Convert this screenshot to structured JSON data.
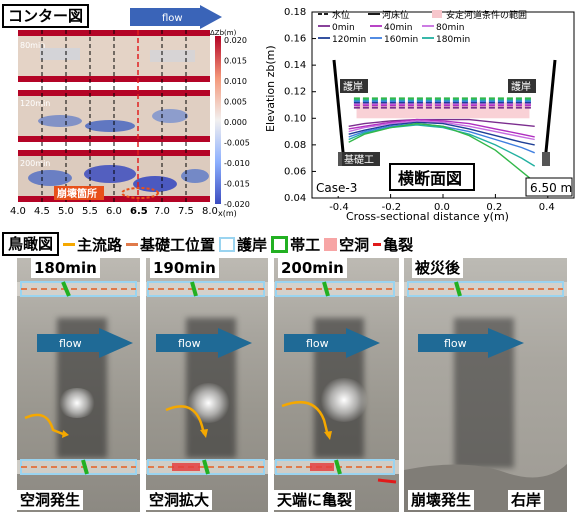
{
  "contour": {
    "title": "コンター図",
    "flow_label": "flow",
    "panels": [
      {
        "label": "80min"
      },
      {
        "label": "120min"
      },
      {
        "label": "200min"
      }
    ],
    "collapse_label": "崩壊箇所",
    "x_ticks": [
      "4.0",
      "4.5",
      "5.0",
      "5.5",
      "6.0",
      "6.5",
      "7.0",
      "7.5",
      "8.0"
    ],
    "x_unit": "x(m)",
    "colorbar_title": "ΔZb(m)",
    "colorbar_ticks": [
      "0.020",
      "0.015",
      "0.010",
      "0.005",
      "0.000",
      "-0.005",
      "-0.010",
      "-0.015",
      "-0.020"
    ]
  },
  "cross_section": {
    "title": "横断面図",
    "case_label": "Case-3",
    "position_label": "6.50 m",
    "revetment_left": "護岸",
    "revetment_right": "護岸",
    "foundation_label": "基礎工",
    "legend": [
      {
        "label": "水位",
        "color": "#000000",
        "dash": true
      },
      {
        "label": "河床位",
        "color": "#000000",
        "dash": false
      },
      {
        "label": "安定河道条件の範囲",
        "color": "#f7c6cc",
        "box": true
      },
      {
        "label": "0min",
        "color": "#7b2d8e"
      },
      {
        "label": "40min",
        "color": "#b02fc0"
      },
      {
        "label": "80min",
        "color": "#c66de0"
      },
      {
        "label": "120min",
        "color": "#1f3f96"
      },
      {
        "label": "160min",
        "color": "#3f7fe0"
      },
      {
        "label": "180min",
        "color": "#22b0a0"
      },
      {
        "label": "200min",
        "color": "#33b84a"
      }
    ]
  },
  "chart_data": {
    "type": "line",
    "title": "",
    "xlabel": "Cross-sectional distance y(m)",
    "ylabel": "Elevation zb(m)",
    "xlim": [
      -0.5,
      0.5
    ],
    "ylim": [
      0.04,
      0.18
    ],
    "x_ticks": [
      "-0.4",
      "-0.2",
      "0.0",
      "0.2",
      "0.4"
    ],
    "y_ticks": [
      "0.04",
      "0.06",
      "0.08",
      "0.10",
      "0.12",
      "0.14",
      "0.16",
      "0.18"
    ],
    "stable_range": [
      0.1,
      0.112
    ],
    "water_levels": [
      0.108,
      0.11,
      0.111,
      0.112,
      0.113,
      0.114,
      0.115
    ],
    "x": [
      -0.36,
      -0.3,
      -0.2,
      -0.1,
      0.0,
      0.1,
      0.2,
      0.3,
      0.35
    ],
    "series": [
      {
        "name": "0min",
        "values": [
          0.094,
          0.096,
          0.098,
          0.099,
          0.099,
          0.099,
          0.097,
          0.095,
          0.094
        ]
      },
      {
        "name": "40min",
        "values": [
          0.092,
          0.094,
          0.097,
          0.099,
          0.098,
          0.096,
          0.092,
          0.088,
          0.086
        ]
      },
      {
        "name": "80min",
        "values": [
          0.09,
          0.093,
          0.096,
          0.098,
          0.097,
          0.094,
          0.09,
          0.086,
          0.084
        ]
      },
      {
        "name": "120min",
        "values": [
          0.088,
          0.091,
          0.095,
          0.097,
          0.096,
          0.092,
          0.087,
          0.082,
          0.08
        ]
      },
      {
        "name": "160min",
        "values": [
          0.086,
          0.09,
          0.094,
          0.096,
          0.094,
          0.09,
          0.084,
          0.078,
          0.074
        ]
      },
      {
        "name": "180min",
        "values": [
          0.084,
          0.089,
          0.093,
          0.095,
          0.093,
          0.088,
          0.08,
          0.07,
          0.064
        ]
      },
      {
        "name": "200min",
        "values": [
          0.082,
          0.088,
          0.093,
          0.096,
          0.094,
          0.087,
          0.076,
          0.06,
          0.052
        ]
      }
    ]
  },
  "aerial": {
    "title": "鳥瞰図",
    "legend": [
      {
        "label": "主流路",
        "color": "#f5a800",
        "type": "line"
      },
      {
        "label": "基礎工位置",
        "color": "#e07a4a",
        "type": "dash"
      },
      {
        "label": "護岸",
        "color": "#9ad4f0",
        "type": "box"
      },
      {
        "label": "帯工",
        "color": "#22b022",
        "type": "box"
      },
      {
        "label": "空洞",
        "color": "#f7a5a5",
        "type": "fill"
      },
      {
        "label": "亀裂",
        "color": "#e01a1a",
        "type": "line"
      }
    ],
    "photos": [
      {
        "time": "180min",
        "caption": "空洞発生"
      },
      {
        "time": "190min",
        "caption": "空洞拡大"
      },
      {
        "time": "200min",
        "caption": "天端に亀裂"
      },
      {
        "time": "被災後",
        "caption": "崩壊発生",
        "caption2": "右岸"
      }
    ],
    "flow_label": "flow"
  }
}
